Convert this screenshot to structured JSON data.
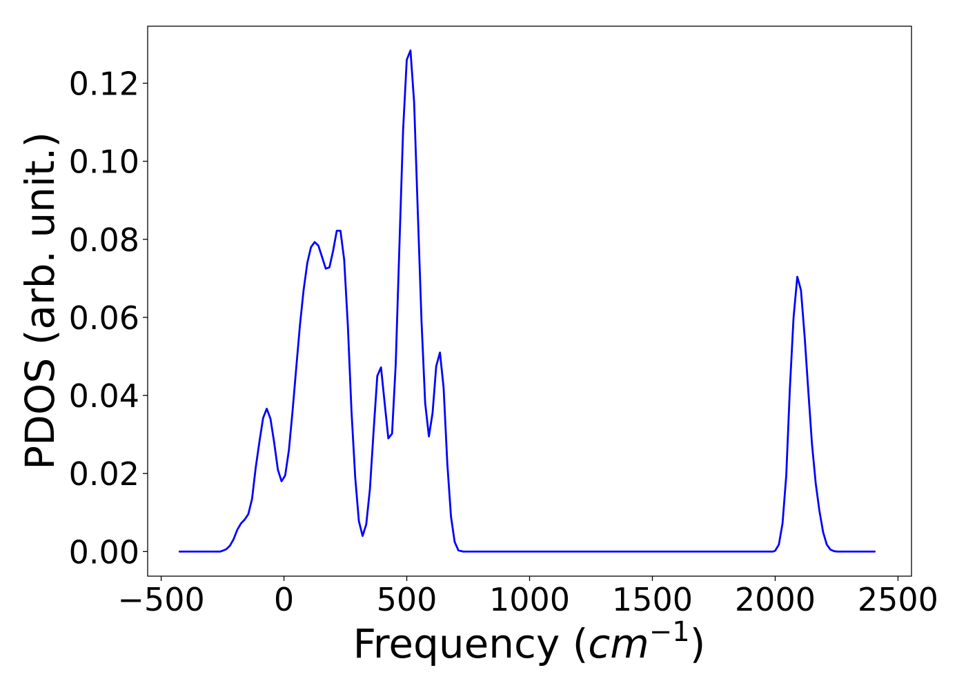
{
  "chart_data": {
    "type": "line",
    "title": "",
    "xlabel": "Frequency",
    "xlabel_unit": "cm",
    "xlabel_unit_exponent": "−1",
    "ylabel": "PDOS (arb. unit.)",
    "xlim": [
      -555,
      2555
    ],
    "ylim": [
      -0.0063,
      0.1346
    ],
    "xticks": [
      -500,
      0,
      500,
      1000,
      1500,
      2000,
      2500
    ],
    "xtick_labels": [
      "−500",
      "0",
      "500",
      "1000",
      "1500",
      "2000",
      "2500"
    ],
    "yticks": [
      0.0,
      0.02,
      0.04,
      0.06,
      0.08,
      0.1,
      0.12
    ],
    "ytick_labels": [
      "0.00",
      "0.02",
      "0.04",
      "0.06",
      "0.08",
      "0.10",
      "0.12"
    ],
    "grid": false,
    "legend": false,
    "series": [
      {
        "color": "#0000ff",
        "x": [
          -425,
          -260,
          -250,
          -235,
          -220,
          -205,
          -190,
          -175,
          -160,
          -145,
          -130,
          -115,
          -100,
          -85,
          -70,
          -55,
          -40,
          -25,
          -10,
          5,
          20,
          35,
          50,
          65,
          80,
          95,
          110,
          125,
          140,
          155,
          170,
          185,
          200,
          215,
          230,
          245,
          260,
          275,
          290,
          305,
          320,
          335,
          350,
          365,
          380,
          395,
          410,
          425,
          440,
          455,
          470,
          485,
          500,
          515,
          530,
          545,
          560,
          575,
          590,
          605,
          620,
          635,
          650,
          665,
          680,
          695,
          710,
          730,
          1990,
          2000,
          2015,
          2030,
          2045,
          2060,
          2075,
          2090,
          2105,
          2120,
          2135,
          2150,
          2165,
          2180,
          2195,
          2210,
          2225,
          2240,
          2255,
          2405
        ],
        "y": [
          0.0,
          0.0,
          0.0002,
          0.0006,
          0.0015,
          0.0032,
          0.0056,
          0.0072,
          0.0082,
          0.0096,
          0.0135,
          0.0215,
          0.0282,
          0.0342,
          0.0366,
          0.034,
          0.028,
          0.021,
          0.018,
          0.0195,
          0.026,
          0.036,
          0.047,
          0.058,
          0.067,
          0.074,
          0.078,
          0.0793,
          0.0784,
          0.0755,
          0.0725,
          0.0728,
          0.077,
          0.0822,
          0.0822,
          0.0748,
          0.058,
          0.036,
          0.019,
          0.0078,
          0.004,
          0.007,
          0.016,
          0.031,
          0.045,
          0.0472,
          0.038,
          0.029,
          0.0302,
          0.048,
          0.078,
          0.108,
          0.126,
          0.1284,
          0.115,
          0.087,
          0.059,
          0.038,
          0.0295,
          0.0355,
          0.0475,
          0.051,
          0.042,
          0.0225,
          0.009,
          0.0025,
          0.0003,
          0.0,
          0.0,
          0.0002,
          0.0018,
          0.0072,
          0.0195,
          0.042,
          0.06,
          0.0704,
          0.067,
          0.055,
          0.041,
          0.0275,
          0.0175,
          0.0105,
          0.005,
          0.0018,
          0.0005,
          0.0001,
          0.0,
          0.0
        ]
      }
    ]
  }
}
